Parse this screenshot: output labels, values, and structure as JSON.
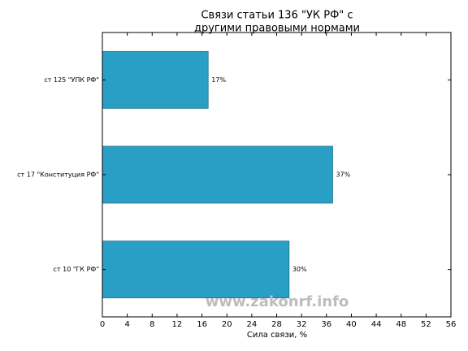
{
  "chart_data": {
    "type": "barh",
    "title": [
      "Связи статьи 136 \"УК РФ\" с",
      "другими правовыми нормами"
    ],
    "xlabel": "Сила связи, %",
    "categories": [
      "ст 125 \"УПК РФ\"",
      "ст 17 \"Конституция РФ\"",
      "ст 10 \"ГК РФ\""
    ],
    "values": [
      17,
      37,
      30
    ],
    "value_labels": [
      "17%",
      "37%",
      "30%"
    ],
    "color": "#2a9fc6",
    "xlim": [
      0,
      56
    ],
    "xticks": [
      0,
      4,
      8,
      12,
      16,
      20,
      24,
      28,
      32,
      36,
      40,
      44,
      48,
      52,
      56
    ],
    "watermark": "www.zakonrf.info"
  }
}
